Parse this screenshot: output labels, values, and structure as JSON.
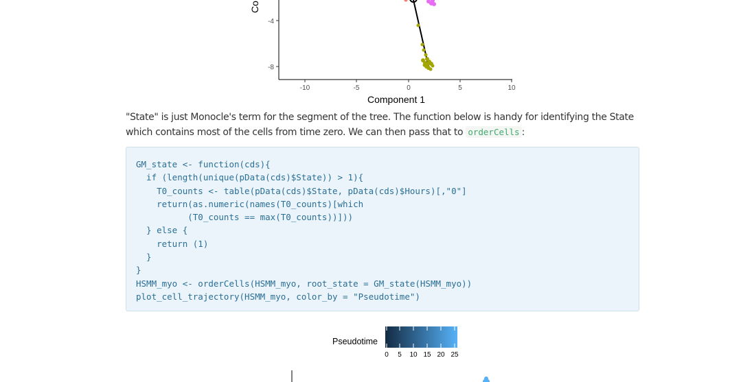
{
  "plot1": {
    "xlabel": "Component 1",
    "ylabel_fragment": "Co",
    "x_ticks": [
      "-10",
      "-5",
      "0",
      "5",
      "10"
    ],
    "y_ticks": [
      "-4",
      "-8"
    ],
    "colors": {
      "olive": "#a3a500",
      "pink": "#e76bf3",
      "salmon": "#f8766d",
      "line": "#000000"
    }
  },
  "prose": {
    "line1": "\"State\" is just Monocle's term for the segment of the tree. The function below is handy for identifying the State",
    "line2_before": "which contains most of the cells from time zero. We can then pass that to ",
    "line2_code": "orderCells",
    "line2_after": ":"
  },
  "code": {
    "lines": [
      "GM_state <- function(cds){",
      "  if (length(unique(pData(cds)$State)) > 1){",
      "    T0_counts <- table(pData(cds)$State, pData(cds)$Hours)[,\"0\"]",
      "    return(as.numeric(names(T0_counts)[which",
      "          (T0_counts == max(T0_counts))]))",
      "  } else {",
      "    return (1)",
      "  }",
      "}",
      "HSMM_myo <- orderCells(HSMM_myo, root_state = GM_state(HSMM_myo))",
      "plot_cell_trajectory(HSMM_myo, color_by = \"Pseudotime\")"
    ]
  },
  "plot2": {
    "legend_title": "Pseudotime",
    "legend_ticks": [
      "0",
      "5",
      "10",
      "15",
      "20",
      "25"
    ],
    "gradient": {
      "low": "#132b43",
      "high": "#56b1f7"
    }
  }
}
